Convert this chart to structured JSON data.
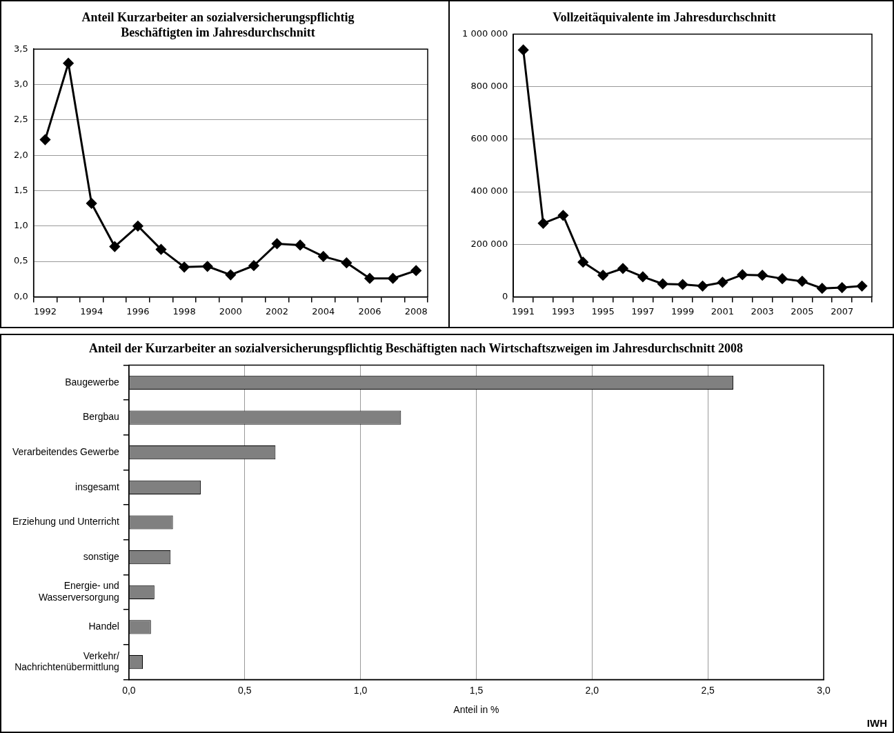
{
  "chart_data": [
    {
      "type": "line",
      "title": "Anteil Kurzarbeiter an sozialversicherungspflichtig\nBeschäftigten im Jahresdurchschnitt",
      "categories": [
        "1992",
        null,
        "1994",
        null,
        "1996",
        null,
        "1998",
        null,
        "2000",
        null,
        "2002",
        null,
        "2004",
        null,
        "2006",
        null,
        "2008"
      ],
      "series": [
        {
          "color": "#000000",
          "values": [
            2.22,
            3.3,
            1.32,
            0.71,
            1.0,
            0.67,
            0.42,
            0.43,
            0.31,
            0.44,
            0.75,
            0.73,
            0.57,
            0.48,
            0.26,
            0.26,
            0.37
          ]
        }
      ],
      "ylim": [
        0,
        3.5
      ],
      "yticks": [
        {
          "value": 0,
          "label": "0,0"
        },
        {
          "value": 0.5,
          "label": "0,5"
        },
        {
          "value": 1,
          "label": "1,0"
        },
        {
          "value": 1.5,
          "label": "1,5"
        },
        {
          "value": 2,
          "label": "2,0"
        },
        {
          "value": 2.5,
          "label": "2,5"
        },
        {
          "value": 3,
          "label": "3,0"
        },
        {
          "value": 3.5,
          "label": "3,5"
        }
      ],
      "grid": "y",
      "legend": false,
      "marker": "diamond",
      "line_style": "solid"
    },
    {
      "type": "line",
      "title": "Vollzeitäquivalente im Jahresdurchschnitt",
      "categories": [
        "1991",
        null,
        "1993",
        null,
        "1995",
        null,
        "1997",
        null,
        "1999",
        null,
        "2001",
        null,
        "2003",
        null,
        "2005",
        null,
        "2007",
        null
      ],
      "series": [
        {
          "color": "#000000",
          "values": [
            940000,
            280000,
            310000,
            132000,
            82000,
            108000,
            76000,
            49000,
            47000,
            41000,
            55000,
            84000,
            82000,
            69000,
            59000,
            32000,
            35000,
            41000
          ]
        }
      ],
      "ylim": [
        0,
        1000000
      ],
      "yticks": [
        0,
        {
          "value": 200000,
          "label": "200 000"
        },
        {
          "value": 400000,
          "label": "400 000"
        },
        {
          "value": 600000,
          "label": "600 000"
        },
        {
          "value": 800000,
          "label": "800 000"
        },
        {
          "value": 1000000,
          "label": "1 000 000"
        }
      ],
      "grid": "y",
      "legend": false,
      "marker": "diamond",
      "line_style": "solid"
    },
    {
      "type": "bar",
      "orientation": "horizontal",
      "title": "Anteil der Kurzarbeiter an sozialversicherungspflichtig Beschäftigten nach Wirtschaftszweigen im Jahresdurchschnitt 2008",
      "xlabel": "Anteil in %",
      "categories": [
        "Baugewerbe",
        "Bergbau",
        "Verarbeitendes Gewerbe",
        "insgesamt",
        "Erziehung und Unterricht",
        "sonstige",
        "Energie- und\nWasserversorgung",
        "Handel",
        "Verkehr/\nNachrichtenübermittlung"
      ],
      "values": [
        2.61,
        1.175,
        0.633,
        0.31,
        0.19,
        0.18,
        0.11,
        0.095,
        0.06
      ],
      "color": "#808080",
      "xlim": [
        0,
        3
      ],
      "xticks": [
        {
          "value": 0,
          "label": "0,0"
        },
        {
          "value": 0.5,
          "label": "0,5"
        },
        {
          "value": 1,
          "label": "1,0"
        },
        {
          "value": 1.5,
          "label": "1,5"
        },
        {
          "value": 2,
          "label": "2,0"
        },
        {
          "value": 2.5,
          "label": "2,5"
        },
        {
          "value": 3,
          "label": "3,0"
        }
      ],
      "grid": "x",
      "legend": false,
      "annotations": [
        "IWH"
      ]
    }
  ]
}
